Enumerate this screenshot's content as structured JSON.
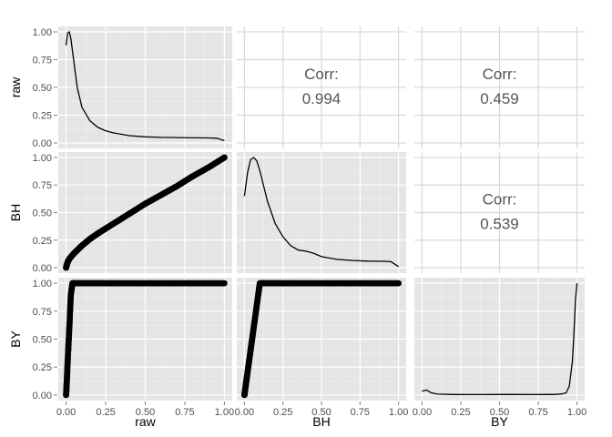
{
  "chart_data": {
    "type": "scatter-matrix",
    "variables": [
      "raw",
      "BH",
      "BY"
    ],
    "xlim": [
      0,
      1
    ],
    "ylim_pairs": [
      0,
      1
    ],
    "ticks": [
      0.0,
      0.25,
      0.5,
      0.75,
      1.0
    ],
    "tick_labels": [
      "0.00",
      "0.25",
      "0.50",
      "0.75",
      "1.00"
    ],
    "grid": true,
    "correlations": [
      {
        "row": "raw",
        "col": "BH",
        "label": "Corr:",
        "value": "0.994"
      },
      {
        "row": "raw",
        "col": "BY",
        "label": "Corr:",
        "value": "0.459"
      },
      {
        "row": "BH",
        "col": "BY",
        "label": "Corr:",
        "value": "0.539"
      }
    ],
    "densities": [
      {
        "variable": "raw",
        "x": [
          0.0,
          0.01,
          0.02,
          0.03,
          0.05,
          0.07,
          0.1,
          0.15,
          0.2,
          0.25,
          0.3,
          0.4,
          0.5,
          0.6,
          0.7,
          0.8,
          0.9,
          0.95,
          1.0
        ],
        "y": [
          0.88,
          0.99,
          1.0,
          0.94,
          0.72,
          0.5,
          0.32,
          0.2,
          0.14,
          0.11,
          0.09,
          0.065,
          0.055,
          0.05,
          0.048,
          0.046,
          0.045,
          0.042,
          0.02
        ]
      },
      {
        "variable": "BH",
        "x": [
          0.0,
          0.02,
          0.04,
          0.06,
          0.08,
          0.1,
          0.15,
          0.2,
          0.25,
          0.3,
          0.35,
          0.4,
          0.45,
          0.5,
          0.6,
          0.7,
          0.8,
          0.9,
          0.95,
          1.0
        ],
        "y": [
          0.65,
          0.86,
          0.98,
          1.0,
          0.97,
          0.88,
          0.6,
          0.4,
          0.28,
          0.2,
          0.16,
          0.15,
          0.13,
          0.1,
          0.075,
          0.065,
          0.06,
          0.058,
          0.055,
          0.01
        ]
      },
      {
        "variable": "BY",
        "x": [
          0.0,
          0.03,
          0.06,
          0.1,
          0.2,
          0.3,
          0.4,
          0.5,
          0.6,
          0.7,
          0.8,
          0.85,
          0.9,
          0.93,
          0.95,
          0.97,
          0.98,
          0.99,
          1.0
        ],
        "y": [
          0.035,
          0.045,
          0.02,
          0.008,
          0.005,
          0.004,
          0.004,
          0.005,
          0.005,
          0.004,
          0.005,
          0.005,
          0.01,
          0.02,
          0.08,
          0.3,
          0.55,
          0.85,
          1.0
        ]
      }
    ],
    "scatters": [
      {
        "y_var": "BH",
        "x_var": "raw",
        "curve": "sqrt-like",
        "x": [
          0.0,
          0.005,
          0.01,
          0.02,
          0.05,
          0.1,
          0.15,
          0.2,
          0.3,
          0.4,
          0.5,
          0.6,
          0.7,
          0.8,
          0.9,
          1.0
        ],
        "y": [
          0.0,
          0.03,
          0.05,
          0.08,
          0.13,
          0.2,
          0.26,
          0.31,
          0.4,
          0.49,
          0.58,
          0.66,
          0.74,
          0.83,
          0.91,
          1.0
        ]
      },
      {
        "y_var": "BY",
        "x_var": "raw",
        "x": [
          0.0,
          0.005,
          0.01,
          0.015,
          0.02,
          0.025,
          0.03,
          0.04,
          0.06,
          0.1,
          0.2,
          0.3,
          0.4,
          0.5,
          0.6,
          0.7,
          0.8,
          0.9,
          1.0
        ],
        "y": [
          0.0,
          0.15,
          0.3,
          0.45,
          0.6,
          0.75,
          0.9,
          1.0,
          1.0,
          1.0,
          1.0,
          1.0,
          1.0,
          1.0,
          1.0,
          1.0,
          1.0,
          1.0,
          1.0
        ]
      },
      {
        "y_var": "BY",
        "x_var": "BH",
        "x": [
          0.0,
          0.01,
          0.02,
          0.03,
          0.04,
          0.05,
          0.06,
          0.07,
          0.08,
          0.09,
          0.1,
          0.12,
          0.15,
          0.2,
          0.3,
          0.4,
          0.5,
          0.6,
          0.7,
          0.8,
          0.9,
          1.0
        ],
        "y": [
          0.0,
          0.1,
          0.2,
          0.3,
          0.4,
          0.5,
          0.6,
          0.7,
          0.8,
          0.9,
          1.0,
          1.0,
          1.0,
          1.0,
          1.0,
          1.0,
          1.0,
          1.0,
          1.0,
          1.0,
          1.0,
          1.0
        ]
      }
    ],
    "colors": {
      "panel_bg": "#e5e5e5",
      "grid": "#ffffff",
      "line": "#000000",
      "point": "#000000",
      "corr_text": "#555555"
    }
  }
}
